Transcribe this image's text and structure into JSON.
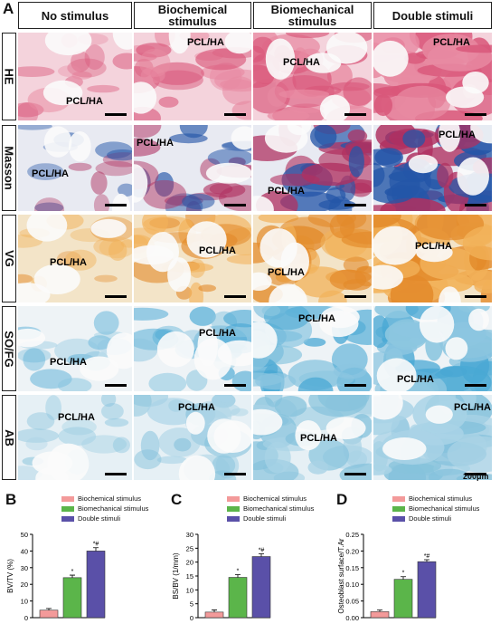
{
  "panel_a": {
    "letter": "A",
    "columns": [
      "No stimulus",
      "Biochemical\nstimulus",
      "Biomechanical\nstimulus",
      "Double stimuli"
    ],
    "rows": [
      "HE",
      "Masson",
      "VG",
      "SO/FG",
      "AB"
    ],
    "cell_label": "PCL/HA",
    "scale_text": "200μm",
    "colors": {
      "HE": {
        "bg": "#f4d3dc",
        "tissue": "#d9577a",
        "fiber": "#e88aa2"
      },
      "Masson": {
        "bg": "#e8eaf2",
        "tissue": "#2456a8",
        "fiber": "#b03060"
      },
      "VG": {
        "bg": "#f3e4c8",
        "tissue": "#e38a2a",
        "fiber": "#f2b25a"
      },
      "SO/FG": {
        "bg": "#eef3f6",
        "tissue": "#49a8d4",
        "fiber": "#8cc6e0"
      },
      "AB": {
        "bg": "#e6f0f5",
        "tissue": "#86c2dc",
        "fiber": "#a9d3e6"
      }
    }
  },
  "legend": [
    "Biochemical stimulus",
    "Biomechanical stimulus",
    "Double stimuli"
  ],
  "series_colors": [
    "#f39a9a",
    "#5bb54a",
    "#5a50a8"
  ],
  "chart_data": [
    {
      "letter": "B",
      "type": "bar",
      "categories": [
        "",
        "",
        ""
      ],
      "values": [
        4.5,
        24,
        40
      ],
      "errors": [
        1,
        1.5,
        2
      ],
      "annotations": [
        "",
        "*",
        "*#"
      ],
      "ylabel": "BV/TV (%)",
      "ylim": [
        0,
        50
      ],
      "yticks": [
        0,
        10,
        20,
        30,
        40,
        50
      ]
    },
    {
      "letter": "C",
      "type": "bar",
      "categories": [
        "",
        "",
        ""
      ],
      "values": [
        2,
        14.5,
        22
      ],
      "errors": [
        0.8,
        1,
        1
      ],
      "annotations": [
        "",
        "*",
        "*#"
      ],
      "ylabel": "BS/BV (1/mm)",
      "ylim": [
        0,
        30
      ],
      "yticks": [
        0,
        5,
        10,
        15,
        20,
        25,
        30
      ]
    },
    {
      "letter": "D",
      "type": "bar",
      "categories": [
        "",
        "",
        ""
      ],
      "values": [
        0.018,
        0.115,
        0.168
      ],
      "errors": [
        0.005,
        0.008,
        0.006
      ],
      "annotations": [
        "",
        "*",
        "*#"
      ],
      "ylabel": "Osteoblast surface/T.Ar",
      "ylim": [
        0,
        0.25
      ],
      "yticks": [
        "0.00",
        "0.05",
        "0.10",
        "0.15",
        "0.20",
        "0.25"
      ]
    }
  ]
}
